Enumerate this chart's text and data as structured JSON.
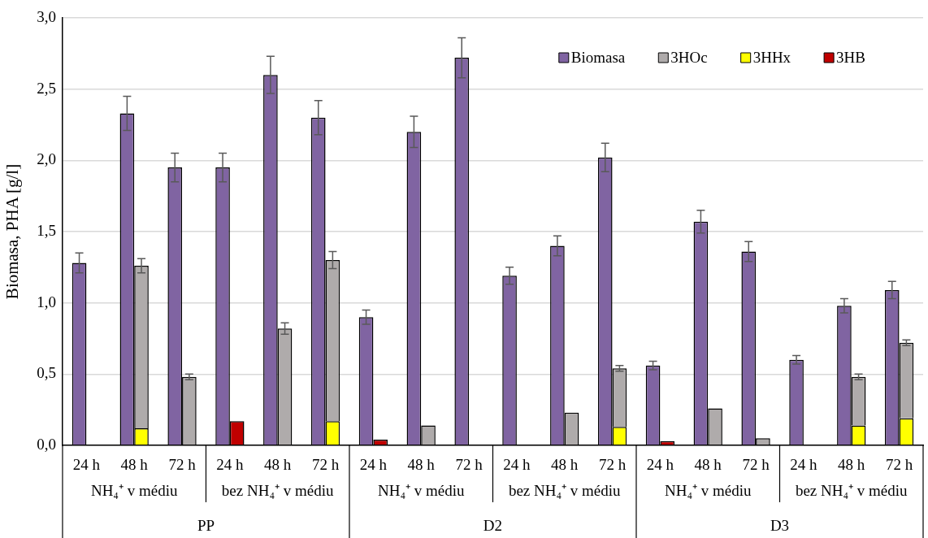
{
  "chart_data": {
    "type": "bar",
    "ylabel": "Biomasa, PHA [g/l]",
    "categories": [
      "24 h",
      "48 h",
      "72 h",
      "24 h",
      "48 h",
      "72 h",
      "24 h",
      "48 h",
      "72 h",
      "24 h",
      "48 h",
      "72 h",
      "24 h",
      "48 h",
      "72 h",
      "24 h",
      "48 h",
      "72 h"
    ],
    "series": [
      {
        "name": "Biomasa",
        "color": "#8064a2",
        "values": [
          1.28,
          2.33,
          1.95,
          1.95,
          2.6,
          2.3,
          0.9,
          2.2,
          2.72,
          1.19,
          1.4,
          2.02,
          0.56,
          1.57,
          1.36,
          0.6,
          0.98,
          1.09
        ],
        "errors": [
          0.07,
          0.12,
          0.1,
          0.1,
          0.13,
          0.12,
          0.05,
          0.11,
          0.14,
          0.06,
          0.07,
          0.1,
          0.03,
          0.08,
          0.07,
          0.03,
          0.05,
          0.06
        ]
      },
      {
        "name": "3HB",
        "color": "#c00000",
        "values": [
          null,
          null,
          null,
          0.17,
          null,
          null,
          0.04,
          null,
          null,
          null,
          null,
          null,
          0.03,
          null,
          null,
          null,
          null,
          null
        ],
        "base": [
          null,
          null,
          null,
          0,
          null,
          null,
          0,
          null,
          null,
          null,
          null,
          null,
          0,
          null,
          null,
          null,
          null,
          null
        ]
      },
      {
        "name": "3HHx",
        "color": "#ffff00",
        "values": [
          null,
          0.12,
          null,
          null,
          null,
          0.17,
          null,
          null,
          null,
          null,
          null,
          0.13,
          null,
          null,
          null,
          null,
          0.14,
          0.19
        ],
        "base": [
          null,
          0,
          null,
          null,
          null,
          0,
          null,
          null,
          null,
          null,
          null,
          0,
          null,
          null,
          null,
          null,
          0,
          0
        ]
      },
      {
        "name": "3HOc",
        "color": "#afabab",
        "values": [
          null,
          1.14,
          0.48,
          null,
          0.82,
          1.13,
          null,
          0.14,
          null,
          null,
          0.23,
          0.41,
          null,
          0.26,
          0.05,
          null,
          0.34,
          0.53
        ],
        "base": [
          null,
          0.12,
          0,
          null,
          0,
          0.17,
          null,
          0,
          null,
          null,
          0,
          0.13,
          null,
          0,
          0,
          null,
          0.14,
          0.19
        ],
        "errors": [
          null,
          0.05,
          0.02,
          null,
          0.04,
          0.06,
          null,
          null,
          null,
          null,
          null,
          0.02,
          null,
          null,
          null,
          null,
          0.02,
          0.02
        ]
      }
    ],
    "ylim": [
      0,
      3
    ],
    "yticks": [
      {
        "value": 0,
        "label": "0,0"
      },
      {
        "value": 0.5,
        "label": "0,5"
      },
      {
        "value": 1,
        "label": "1,0"
      },
      {
        "value": 1.5,
        "label": "1,5"
      },
      {
        "value": 2,
        "label": "2,0"
      },
      {
        "value": 2.5,
        "label": "2,5"
      },
      {
        "value": 3,
        "label": "3,0"
      }
    ],
    "grid": "y",
    "legend": "top right",
    "annotations": [
      "NH₄⁺ v médiu",
      "bez NH₄⁺ v médiu",
      "NH₄⁺ v médiu",
      "bez NH₄⁺ v médiu",
      "NH₄⁺ v médiu",
      "bez NH₄⁺ v médiu",
      "PP",
      "D2",
      "D3"
    ]
  }
}
